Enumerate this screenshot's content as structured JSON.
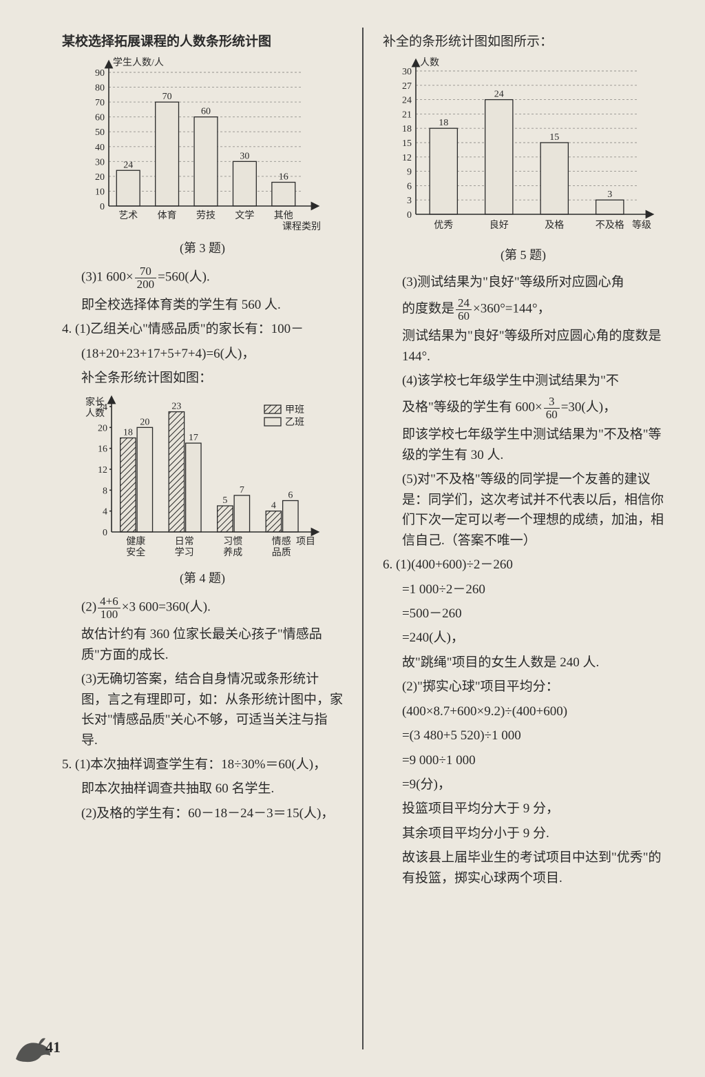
{
  "left": {
    "title": "某校选择拓展课程的人数条形统计图",
    "chart1": {
      "type": "bar",
      "ylabel": "学生人数/人",
      "xlabel": "课程类别",
      "categories": [
        "艺术",
        "体育",
        "劳技",
        "文学",
        "其他"
      ],
      "ylim": [
        0,
        90
      ],
      "ytick_step": 10,
      "values": [
        24,
        70,
        60,
        30,
        16
      ],
      "bar_color": "#e8e4da",
      "bar_stroke": "#2a2a2a",
      "grid_color": "#5a5a5a",
      "background": "#ece8df",
      "bar_width": 0.6,
      "annotations": [
        24,
        70,
        60,
        30,
        16
      ]
    },
    "caption1": "(第 3 题)",
    "p3_line": "(3)1 600×",
    "p3_frac": {
      "num": "70",
      "den": "200"
    },
    "p3_line2": "=560(人).",
    "p3_text": "即全校选择体育类的学生有 560 人.",
    "p4_a": "4. (1)乙组关心\"情感品质\"的家长有：100－",
    "p4_b": "(18+20+23+17+5+7+4)=6(人)，",
    "p4_c": "补全条形统计图如图：",
    "chart2": {
      "type": "grouped-bar",
      "ylabel": "家长\n人数",
      "categories": [
        "健康\n安全",
        "日常\n学习",
        "习惯\n养成",
        "情感\n品质"
      ],
      "xlabel": "项目",
      "ylim": [
        0,
        24
      ],
      "ytick_step": 4,
      "series": [
        {
          "name": "甲班",
          "pattern": "hatch",
          "values": [
            18,
            23,
            5,
            4
          ]
        },
        {
          "name": "乙班",
          "pattern": "plain",
          "values": [
            20,
            17,
            7,
            6
          ]
        }
      ],
      "bar_width": 0.35,
      "colors": {
        "plain": "#e8e4da",
        "hatch_fg": "#2a2a2a",
        "hatch_bg": "#e8e4da",
        "stroke": "#2a2a2a"
      }
    },
    "caption2": "(第 4 题)",
    "p4_d_pre": "(2)",
    "p4_d_frac": {
      "num": "4+6",
      "den": "100"
    },
    "p4_d_post": "×3 600=360(人).",
    "p4_e": "故估计约有 360 位家长最关心孩子\"情感品质\"方面的成长.",
    "p4_f": "(3)无确切答案，结合自身情况或条形统计图，言之有理即可，如：从条形统计图中，家长对\"情感品质\"关心不够，可适当关注与指导.",
    "p5_a": "5. (1)本次抽样调查学生有：18÷30%＝60(人)，",
    "p5_b": "即本次抽样调查共抽取 60 名学生.",
    "p5_c": "(2)及格的学生有：60－18－24－3＝15(人)，"
  },
  "right": {
    "title": "补全的条形统计图如图所示：",
    "chart3": {
      "type": "bar",
      "ylabel": "人数",
      "xlabel": "等级",
      "categories": [
        "优秀",
        "良好",
        "及格",
        "不及格"
      ],
      "ylim": [
        0,
        30
      ],
      "ytick_step": 3,
      "values": [
        18,
        24,
        15,
        3
      ],
      "bar_color": "#e8e4da",
      "bar_stroke": "#2a2a2a",
      "bar_width": 0.5
    },
    "caption3": "(第 5 题)",
    "r3a": "(3)测试结果为\"良好\"等级所对应圆心角",
    "r3b_pre": "的度数是",
    "r3b_frac": {
      "num": "24",
      "den": "60"
    },
    "r3b_post": "×360°=144°，",
    "r3c": "测试结果为\"良好\"等级所对应圆心角的度数是 144°.",
    "r4a": "(4)该学校七年级学生中测试结果为\"不",
    "r4b_pre": "及格\"等级的学生有 600×",
    "r4b_frac": {
      "num": "3",
      "den": "60"
    },
    "r4b_post": "=30(人)，",
    "r4c": "即该学校七年级学生中测试结果为\"不及格\"等级的学生有 30 人.",
    "r5": "(5)对\"不及格\"等级的同学提一个友善的建议是：同学们，这次考试并不代表以后，相信你们下次一定可以考一个理想的成绩，加油，相信自己.（答案不唯一）",
    "r6a": "6. (1)(400+600)÷2－260",
    "r6b": "=1 000÷2－260",
    "r6c": "=500－260",
    "r6d": "=240(人)，",
    "r6e": "故\"跳绳\"项目的女生人数是 240 人.",
    "r6f": "(2)\"掷实心球\"项目平均分：",
    "r6g": "(400×8.7+600×9.2)÷(400+600)",
    "r6h": "=(3 480+5 520)÷1 000",
    "r6i": "=9 000÷1 000",
    "r6j": "=9(分)，",
    "r6k": "投篮项目平均分大于 9 分，",
    "r6l": "其余项目平均分小于 9 分.",
    "r6m": "故该县上届毕业生的考试项目中达到\"优秀\"的有投篮，掷实心球两个项目."
  },
  "pagenum": "41"
}
